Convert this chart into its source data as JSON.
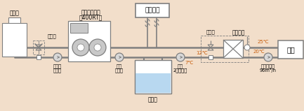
{
  "bg_color": "#f2deca",
  "line_color": "#7f7f7f",
  "line_width": 1.5,
  "text_color": "#000000",
  "accent_color": "#c86010",
  "cooling_tower_label": "冷却塔",
  "turbo_label_1": "ターボ冷凍機",
  "turbo_label_2": "（400RT）",
  "three_way_valve1": "三方弁",
  "three_way_valve2": "三方弁",
  "aircon_label": "空調負荷",
  "heat_exchanger_label": "熱交換器",
  "cooling_water_pump_label_1": "冷却水",
  "cooling_water_pump_label_2": "ポンプ",
  "chilled_water_pump_label_1": "冷水",
  "chilled_water_pump_label_2": "ポンプ",
  "chilled_water_tank_label": "冷水槽",
  "secondary_pump_label_1": "冷水",
  "secondary_pump_label_2": "2次ポンプ",
  "circulation_pump_label_1": "循環ポンプ",
  "circulation_pump_label_2": "96m³/h",
  "load_label": "負荷",
  "temp_12": "12℃",
  "temp_25": "25℃",
  "temp_7": "7℃",
  "temp_20": "20℃",
  "fig_width": 4.33,
  "fig_height": 1.59,
  "dpi": 100
}
